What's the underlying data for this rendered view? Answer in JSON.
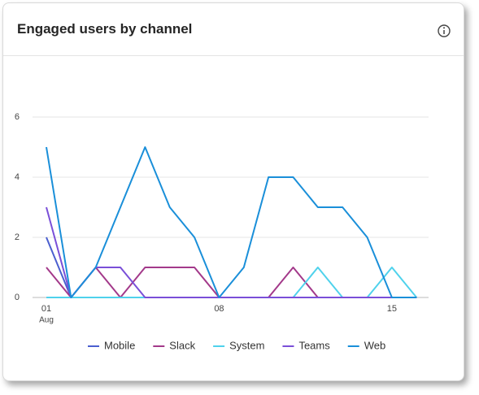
{
  "chart_data": {
    "type": "line",
    "title": "Engaged users by channel",
    "categories": [
      "01",
      null,
      null,
      null,
      null,
      null,
      null,
      "08",
      null,
      null,
      null,
      null,
      null,
      null,
      "15",
      null
    ],
    "x_sublabel": "Aug",
    "ylim": [
      0,
      6
    ],
    "yticks": [
      0,
      2,
      4,
      6
    ],
    "grid": true,
    "legend": "bottom",
    "series": [
      {
        "name": "Mobile",
        "color": "#4b5fcf",
        "values": [
          2,
          0,
          0,
          0,
          0,
          0,
          0,
          0,
          0,
          0,
          0,
          0,
          0,
          0,
          0,
          0
        ]
      },
      {
        "name": "Slack",
        "color": "#a3398a",
        "values": [
          1,
          0,
          1,
          0,
          1,
          1,
          1,
          0,
          0,
          0,
          1,
          0,
          0,
          0,
          0,
          0
        ]
      },
      {
        "name": "System",
        "color": "#4fd2ec",
        "values": [
          0,
          0,
          0,
          0,
          0,
          0,
          0,
          0,
          0,
          0,
          0,
          1,
          0,
          0,
          1,
          0
        ]
      },
      {
        "name": "Teams",
        "color": "#7a4fd8",
        "values": [
          3,
          0,
          1,
          1,
          0,
          0,
          0,
          0,
          0,
          0,
          0,
          0,
          0,
          0,
          0,
          0
        ]
      },
      {
        "name": "Web",
        "color": "#1a8fd9",
        "values": [
          5,
          0,
          1,
          3,
          5,
          3,
          2,
          0,
          1,
          4,
          4,
          3,
          3,
          2,
          0,
          0
        ]
      }
    ]
  }
}
